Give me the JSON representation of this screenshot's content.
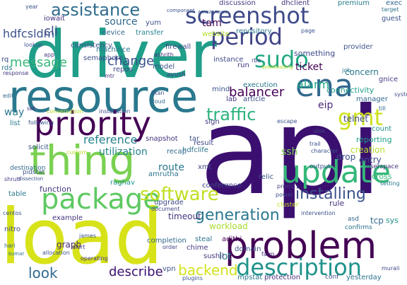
{
  "words": [
    {
      "text": "api",
      "color": "#3b0f70"
    },
    {
      "text": "load",
      "color": "#d7e219"
    },
    {
      "text": "driver",
      "color": "#1f9e89"
    },
    {
      "text": "resource",
      "color": "#2a788e"
    },
    {
      "text": "problem",
      "color": "#440154"
    },
    {
      "text": "priority",
      "color": "#440154"
    },
    {
      "text": "thing",
      "color": "#7ad151"
    },
    {
      "text": "update",
      "color": "#35b779"
    },
    {
      "text": "package",
      "color": "#5ec962"
    },
    {
      "text": "screenshot",
      "color": "#3e4a89"
    },
    {
      "text": "description",
      "color": "#20938c"
    },
    {
      "text": "period",
      "color": "#414487"
    },
    {
      "text": "ena",
      "color": "#31688e"
    },
    {
      "text": "software",
      "color": "#c2df23"
    },
    {
      "text": "assistance",
      "color": "#2f6c8e"
    },
    {
      "text": "sudo",
      "color": "#22a884"
    },
    {
      "text": "gmt",
      "color": "#cde11d"
    },
    {
      "text": "traffic",
      "color": "#2db27d"
    },
    {
      "text": "generation",
      "color": "#2a788e"
    },
    {
      "text": "installing",
      "color": "#3b528b"
    },
    {
      "text": "backend",
      "color": "#d2e21b"
    },
    {
      "text": "describe",
      "color": "#3b0f70"
    },
    {
      "text": "look",
      "color": "#31688e"
    },
    {
      "text": "balancer",
      "color": "#440154"
    },
    {
      "text": "alarm",
      "color": "#22a884"
    },
    {
      "text": "reference",
      "color": "#26828e"
    },
    {
      "text": "change",
      "color": "#3b528b"
    },
    {
      "text": "message",
      "color": "#35b779"
    },
    {
      "text": "utilization",
      "color": "#26828e"
    },
    {
      "text": "route",
      "color": "#2a788e"
    },
    {
      "text": "hdfcsldm",
      "color": "#3b528b"
    },
    {
      "text": "cli",
      "color": "#3e4a89"
    },
    {
      "text": "tam",
      "color": "#440154"
    },
    {
      "text": "source",
      "color": "#31688e"
    },
    {
      "text": "eip",
      "color": "#482878"
    },
    {
      "text": "ticket",
      "color": "#440154"
    },
    {
      "text": "connectivity",
      "color": "#1f9e89"
    },
    {
      "text": "something",
      "color": "#3e4a89"
    },
    {
      "text": "concern",
      "color": "#2a788e"
    },
    {
      "text": "tcp",
      "color": "#31688e"
    },
    {
      "text": "graph",
      "color": "#482878"
    },
    {
      "text": "way",
      "color": "#2a788e"
    },
    {
      "text": "telnet",
      "color": "#3e4a89"
    },
    {
      "text": "function",
      "color": "#443983"
    },
    {
      "text": "timeout",
      "color": "#46337e"
    },
    {
      "text": "workload",
      "color": "#aadc32"
    },
    {
      "text": "lot",
      "color": "#287c8e"
    },
    {
      "text": "vpn",
      "color": "#3b528b"
    },
    {
      "text": "ssh",
      "color": "#7ad151"
    },
    {
      "text": "upgrade",
      "color": "#3e4a89"
    },
    {
      "text": "creation",
      "color": "#b5de2b"
    },
    {
      "text": "reporting",
      "color": "#1f9e89"
    },
    {
      "text": "entry",
      "color": "#3e4a89"
    },
    {
      "text": "sys",
      "color": "#20938c"
    },
    {
      "text": "cross",
      "color": "#35b779"
    },
    {
      "text": "drop",
      "color": "#3b528b"
    },
    {
      "text": "rule",
      "color": "#46337e"
    },
    {
      "text": "manager",
      "color": "#31688e"
    },
    {
      "text": "count",
      "color": "#21918c"
    },
    {
      "text": "repos",
      "color": "#404688"
    },
    {
      "text": "machince",
      "color": "#2c728e"
    },
    {
      "text": "model",
      "color": "#3b528b"
    },
    {
      "text": "result",
      "color": "#3e4a89"
    },
    {
      "text": "domain",
      "color": "#3b528b"
    },
    {
      "text": "steal",
      "color": "#2c728e"
    },
    {
      "text": "adithi",
      "color": "#440154"
    },
    {
      "text": "completion",
      "color": "#31688e"
    },
    {
      "text": "protection",
      "color": "#46337e"
    },
    {
      "text": "yesterday",
      "color": "#2c728e"
    },
    {
      "text": "mpstat",
      "color": "#2a788e"
    },
    {
      "text": "example",
      "color": "#46337e"
    },
    {
      "text": "chime",
      "color": "#443983"
    },
    {
      "text": "sushil",
      "color": "#46337e"
    },
    {
      "text": "amrutha",
      "color": "#2c728e"
    },
    {
      "text": "raghav",
      "color": "#21918c"
    },
    {
      "text": "hdfclife",
      "color": "#2c728e"
    },
    {
      "text": "xmt",
      "color": "#3e4a89"
    },
    {
      "text": "conference",
      "color": "#404688"
    },
    {
      "text": "relic",
      "color": "#3b528b"
    },
    {
      "text": "snapshot",
      "color": "#46337e"
    },
    {
      "text": "recap",
      "color": "#31688e"
    },
    {
      "text": "tar",
      "color": "#3b528b"
    },
    {
      "text": "sign",
      "color": "#443983"
    },
    {
      "text": "lab",
      "color": "#46337e"
    },
    {
      "text": "article",
      "color": "#3b528b"
    },
    {
      "text": "execution",
      "color": "#2a788e"
    },
    {
      "text": "run",
      "color": "#443983"
    },
    {
      "text": "instance",
      "color": "#3e4a89"
    },
    {
      "text": "discussion",
      "color": "#443983"
    },
    {
      "text": "dhclient",
      "color": "#46337e"
    },
    {
      "text": "premium",
      "color": "#287c8e"
    },
    {
      "text": "repository",
      "color": "#2a788e"
    },
    {
      "text": "website",
      "color": "#b5de2b"
    },
    {
      "text": "device",
      "color": "#31688e"
    },
    {
      "text": "transfer",
      "color": "#26828e"
    },
    {
      "text": "yum",
      "color": "#3b528b"
    },
    {
      "text": "iowait",
      "color": "#46337e"
    },
    {
      "text": "consistency",
      "color": "#3b528b"
    },
    {
      "text": "semaphore",
      "color": "#3e4a89"
    },
    {
      "text": "firewall",
      "color": "#404688"
    },
    {
      "text": "provider",
      "color": "#3b528b"
    },
    {
      "text": "guest",
      "color": "#3b528b"
    },
    {
      "text": "exec",
      "color": "#31688e"
    },
    {
      "text": "target",
      "color": "#2c728e"
    },
    {
      "text": "gnice",
      "color": "#443983"
    },
    {
      "text": "job",
      "color": "#2a788e"
    },
    {
      "text": "till",
      "color": "#31688e"
    },
    {
      "text": "systemd",
      "color": "#3e4a89"
    },
    {
      "text": "ayush",
      "color": "#404688"
    },
    {
      "text": "mtr",
      "color": "#46337e"
    },
    {
      "text": "escape",
      "color": "#3b528b"
    },
    {
      "text": "disk",
      "color": "#404688"
    },
    {
      "text": "character",
      "color": "#3b528b"
    },
    {
      "text": "userspace",
      "color": "#46337e"
    },
    {
      "text": "setting",
      "color": "#2a788e"
    },
    {
      "text": "output",
      "color": "#3b528b"
    },
    {
      "text": "trail",
      "color": "#3b528b"
    },
    {
      "text": "promo",
      "color": "#443983"
    },
    {
      "text": "power",
      "color": "#3e4a89"
    },
    {
      "text": "cluster",
      "color": "#c2df23"
    },
    {
      "text": "intervention",
      "color": "#3b528b"
    },
    {
      "text": "asd",
      "color": "#31688e"
    },
    {
      "text": "confirms",
      "color": "#2c728e"
    },
    {
      "text": "conf",
      "color": "#3b528b"
    },
    {
      "text": "murali",
      "color": "#3e4a89"
    },
    {
      "text": "farm",
      "color": "#46337e"
    },
    {
      "text": "plugins",
      "color": "#3b528b"
    },
    {
      "text": "order",
      "color": "#404688"
    },
    {
      "text": "james",
      "color": "#3b528b"
    },
    {
      "text": "alert",
      "color": "#46337e"
    },
    {
      "text": "nitro",
      "color": "#3e4a89"
    },
    {
      "text": "hari",
      "color": "#31688e"
    },
    {
      "text": "centos",
      "color": "#3b528b"
    },
    {
      "text": "kumar",
      "color": "#2c728e"
    },
    {
      "text": "allocation",
      "color": "#3b528b"
    },
    {
      "text": "operating",
      "color": "#46337e"
    },
    {
      "text": "document",
      "color": "#404688"
    },
    {
      "text": "table",
      "color": "#2a788e"
    },
    {
      "text": "solicit",
      "color": "#3b528b"
    },
    {
      "text": "destination",
      "color": "#31688e"
    },
    {
      "text": "shruti",
      "color": "#443983"
    },
    {
      "text": "pidstat",
      "color": "#3b528b"
    },
    {
      "text": "custom",
      "color": "#b5de2b"
    },
    {
      "text": "installation",
      "color": "#3e4a89"
    },
    {
      "text": "conversation",
      "color": "#b5de2b"
    },
    {
      "text": "following",
      "color": "#3b528b"
    },
    {
      "text": "component",
      "color": "#3b528b"
    },
    {
      "text": "titan",
      "color": "#3b528b"
    },
    {
      "text": "cloud",
      "color": "#31688e"
    },
    {
      "text": "amazonaws",
      "color": "#3b528b"
    },
    {
      "text": "rds",
      "color": "#2a788e"
    },
    {
      "text": "response",
      "color": "#46337e"
    },
    {
      "text": "app",
      "color": "#443983"
    },
    {
      "text": "year",
      "color": "#3b528b"
    },
    {
      "text": "lookup",
      "color": "#3b528b"
    },
    {
      "text": "ashrith",
      "color": "#46337e"
    },
    {
      "text": "rbe",
      "color": "#3e4a89"
    },
    {
      "text": "downloading",
      "color": "#b5de2b"
    },
    {
      "text": "page",
      "color": "#3b528b"
    },
    {
      "text": "edit",
      "color": "#31688e"
    },
    {
      "text": "dissection",
      "color": "#3b528b"
    },
    {
      "text": "set",
      "color": "#443983"
    },
    {
      "text": "list",
      "color": "#2a788e"
    },
    {
      "text": "rq",
      "color": "#3e4a89"
    },
    {
      "text": "mind",
      "color": "#3b528b"
    }
  ]
}
